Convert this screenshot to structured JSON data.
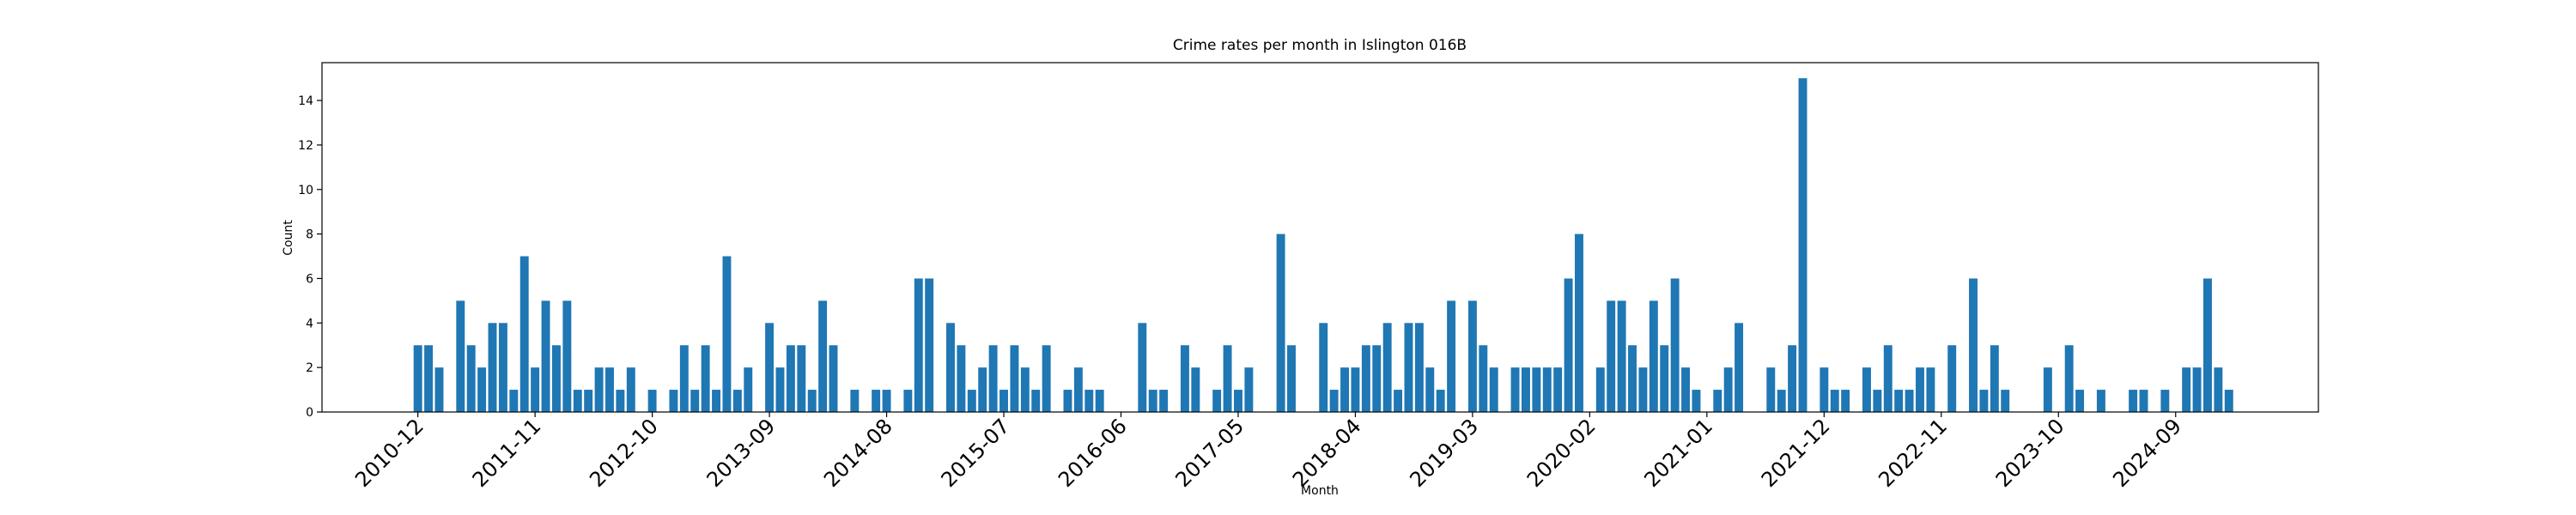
{
  "chart_data": {
    "type": "bar",
    "title": "Crime rates per month in Islington 016B",
    "x_label": "Month",
    "y_label": "Count",
    "color": "#1f77b4",
    "categories": [
      "2010-12",
      null,
      null,
      null,
      null,
      null,
      null,
      null,
      null,
      null,
      null,
      "2011-11",
      null,
      null,
      null,
      null,
      null,
      null,
      null,
      null,
      null,
      null,
      "2012-10",
      null,
      null,
      null,
      null,
      null,
      null,
      null,
      null,
      null,
      null,
      "2013-09",
      null,
      null,
      null,
      null,
      null,
      null,
      null,
      null,
      null,
      null,
      "2014-08",
      null,
      null,
      null,
      null,
      null,
      null,
      null,
      null,
      null,
      null,
      "2015-07",
      null,
      null,
      null,
      null,
      null,
      null,
      null,
      null,
      null,
      null,
      "2016-06",
      null,
      null,
      null,
      null,
      null,
      null,
      null,
      null,
      null,
      null,
      "2017-05",
      null,
      null,
      null,
      null,
      null,
      null,
      null,
      null,
      null,
      null,
      "2018-04",
      null,
      null,
      null,
      null,
      null,
      null,
      null,
      null,
      null,
      null,
      "2019-03",
      null,
      null,
      null,
      null,
      null,
      null,
      null,
      null,
      null,
      null,
      "2020-02",
      null,
      null,
      null,
      null,
      null,
      null,
      null,
      null,
      null,
      null,
      "2021-01",
      null,
      null,
      null,
      null,
      null,
      null,
      null,
      null,
      null,
      null,
      "2021-12",
      null,
      null,
      null,
      null,
      null,
      null,
      null,
      null,
      null,
      null,
      "2022-11",
      null,
      null,
      null,
      null,
      null,
      null,
      null,
      null,
      null,
      null,
      "2023-10",
      null,
      null,
      null,
      null,
      null,
      null,
      null,
      null,
      null,
      null,
      "2024-09",
      null,
      null,
      null,
      null,
      null
    ],
    "values": [
      3,
      3,
      2,
      0,
      5,
      3,
      2,
      4,
      4,
      1,
      7,
      2,
      5,
      3,
      5,
      1,
      1,
      2,
      2,
      1,
      2,
      0,
      1,
      0,
      1,
      3,
      1,
      3,
      1,
      7,
      1,
      2,
      0,
      4,
      2,
      3,
      3,
      1,
      5,
      3,
      0,
      1,
      0,
      1,
      1,
      0,
      1,
      6,
      6,
      0,
      4,
      3,
      1,
      2,
      3,
      1,
      3,
      2,
      1,
      3,
      0,
      1,
      2,
      1,
      1,
      0,
      0,
      0,
      4,
      1,
      1,
      0,
      3,
      2,
      0,
      1,
      3,
      1,
      2,
      0,
      0,
      8,
      3,
      0,
      0,
      4,
      1,
      2,
      2,
      3,
      3,
      4,
      1,
      4,
      4,
      2,
      1,
      5,
      0,
      5,
      3,
      2,
      0,
      2,
      2,
      2,
      2,
      2,
      6,
      8,
      0,
      2,
      5,
      5,
      3,
      2,
      5,
      3,
      6,
      2,
      1,
      0,
      1,
      2,
      4,
      0,
      0,
      2,
      1,
      3,
      15,
      0,
      2,
      1,
      1,
      0,
      2,
      1,
      3,
      1,
      1,
      2,
      2,
      0,
      3,
      0,
      6,
      1,
      3,
      1,
      0,
      0,
      0,
      2,
      0,
      3,
      1,
      0,
      1,
      0,
      0,
      1,
      1,
      0,
      1,
      0,
      2,
      2,
      6,
      2,
      1
    ],
    "ylim": [
      0,
      15.7
    ],
    "yticks": [
      0,
      2,
      4,
      6,
      8,
      10,
      12,
      14
    ]
  }
}
